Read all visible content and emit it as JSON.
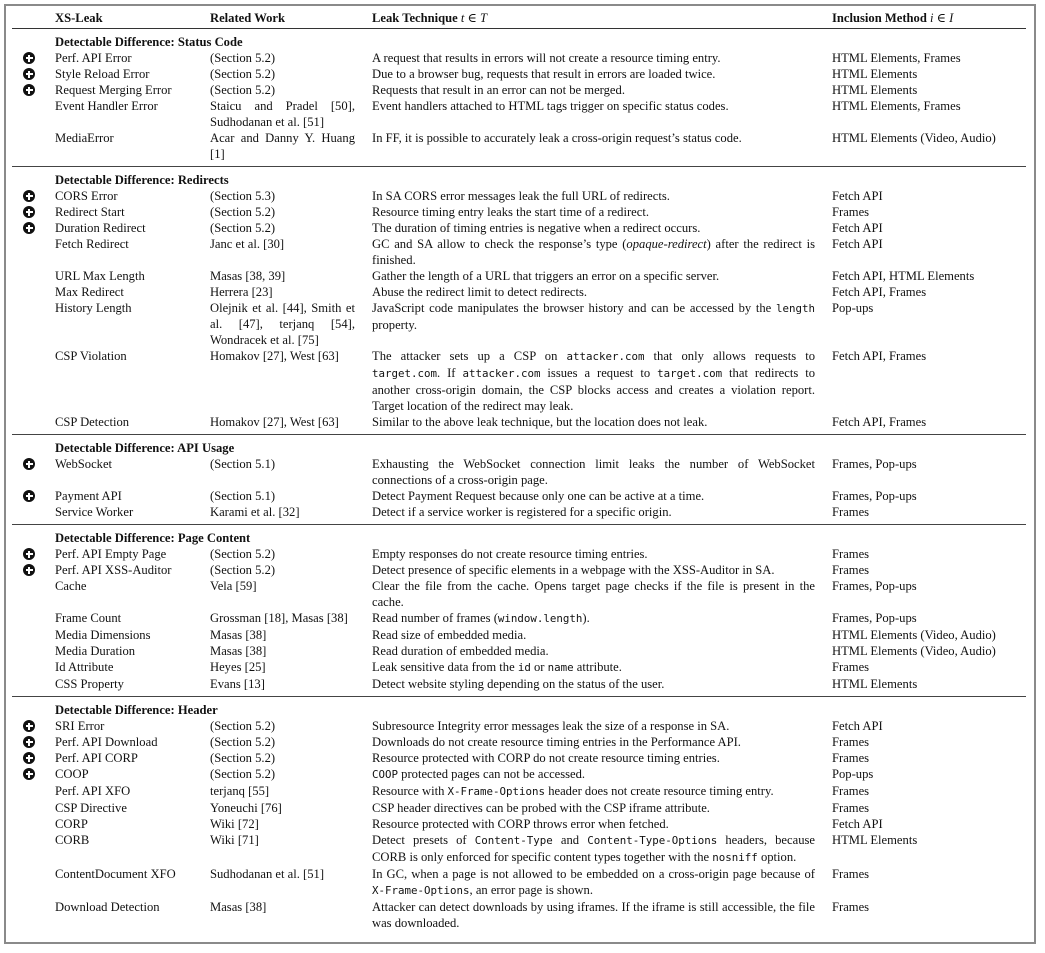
{
  "header": {
    "col_leak": "XS-Leak",
    "col_related": "Related Work",
    "col_technique": "Leak Technique",
    "col_technique_math": "t ∈ T",
    "col_inclusion": "Inclusion Method",
    "col_inclusion_math": "i ∈ I"
  },
  "sections": [
    {
      "title": "Detectable Difference: Status Code",
      "rows": [
        {
          "new": true,
          "name": "Perf. API Error",
          "related": "(Section 5.2)",
          "technique": [
            {
              "t": "A request that results in errors will not create a resource timing entry."
            }
          ],
          "inclusion": "HTML Elements, Frames"
        },
        {
          "new": true,
          "name": "Style Reload Error",
          "related": "(Section 5.2)",
          "technique": [
            {
              "t": "Due to a browser bug, requests that result in errors are loaded twice."
            }
          ],
          "inclusion": "HTML Elements"
        },
        {
          "new": true,
          "name": "Request Merging Error",
          "related": "(Section 5.2)",
          "technique": [
            {
              "t": "Requests that result in an error can not be merged."
            }
          ],
          "inclusion": "HTML Elements"
        },
        {
          "new": false,
          "name": "Event Handler Error",
          "related": "Staicu and Pradel [50], Sudhodanan et al. [51]",
          "technique": [
            {
              "t": "Event handlers attached to HTML tags trigger on specific status codes."
            }
          ],
          "inclusion": "HTML Elements, Frames"
        },
        {
          "new": false,
          "name": "MediaError",
          "related": "Acar and Danny Y. Huang [1]",
          "technique": [
            {
              "t": "In FF, it is possible to accurately leak a cross-origin request’s status code."
            }
          ],
          "inclusion": "HTML Elements (Video, Audio)"
        }
      ]
    },
    {
      "title": "Detectable Difference: Redirects",
      "rows": [
        {
          "new": true,
          "name": "CORS Error",
          "related": "(Section 5.3)",
          "technique": [
            {
              "t": "In SA CORS error messages leak the full URL of redirects."
            }
          ],
          "inclusion": "Fetch API"
        },
        {
          "new": true,
          "name": "Redirect Start",
          "related": "(Section 5.2)",
          "technique": [
            {
              "t": "Resource timing entry leaks the start time of a redirect."
            }
          ],
          "inclusion": "Frames"
        },
        {
          "new": true,
          "name": "Duration Redirect",
          "related": "(Section 5.2)",
          "technique": [
            {
              "t": "The duration of timing entries is negative when a redirect occurs."
            }
          ],
          "inclusion": "Fetch API"
        },
        {
          "new": false,
          "name": "Fetch Redirect",
          "related": "Janc et al. [30]",
          "technique": [
            {
              "t": "GC and SA allow to check the response’s type ("
            },
            {
              "em": "opaque-redirect"
            },
            {
              "t": ") after the redirect is finished."
            }
          ],
          "inclusion": "Fetch API"
        },
        {
          "new": false,
          "name": "URL Max Length",
          "related": "Masas [38, 39]",
          "technique": [
            {
              "t": "Gather the length of a URL that triggers an error on a specific server."
            }
          ],
          "inclusion": "Fetch API, HTML Elements"
        },
        {
          "new": false,
          "name": "Max Redirect",
          "related": "Herrera [23]",
          "technique": [
            {
              "t": "Abuse the redirect limit to detect redirects."
            }
          ],
          "inclusion": "Fetch API, Frames"
        },
        {
          "new": false,
          "name": "History Length",
          "related": "Olejnik et al. [44], Smith et al. [47], terjanq [54], Wondracek et al. [75]",
          "technique": [
            {
              "t": "JavaScript code manipulates the browser history and can be accessed by the "
            },
            {
              "code": "length"
            },
            {
              "t": " property."
            }
          ],
          "inclusion": "Pop-ups"
        },
        {
          "new": false,
          "name": "CSP Violation",
          "related": "Homakov [27], West [63]",
          "technique": [
            {
              "t": "The attacker sets up a CSP on "
            },
            {
              "code": "attacker.com"
            },
            {
              "t": " that only allows requests to "
            },
            {
              "code": "target.com"
            },
            {
              "t": ". If "
            },
            {
              "code": "attacker.com"
            },
            {
              "t": " issues a request to "
            },
            {
              "code": "target.com"
            },
            {
              "t": " that redirects to another cross-origin domain, the CSP blocks access and creates a violation report. Target location of the redirect may leak."
            }
          ],
          "inclusion": "Fetch API, Frames"
        },
        {
          "new": false,
          "name": "CSP Detection",
          "related": "Homakov [27], West [63]",
          "technique": [
            {
              "t": "Similar to the above leak technique, but the location does not leak."
            }
          ],
          "inclusion": "Fetch API, Frames"
        }
      ]
    },
    {
      "title": "Detectable Difference: API Usage",
      "rows": [
        {
          "new": true,
          "name": "WebSocket",
          "related": "(Section 5.1)",
          "technique": [
            {
              "t": "Exhausting the WebSocket connection limit leaks the number of WebSocket connections of a cross-origin page."
            }
          ],
          "inclusion": "Frames, Pop-ups"
        },
        {
          "new": true,
          "name": "Payment API",
          "related": "(Section 5.1)",
          "technique": [
            {
              "t": "Detect Payment Request because only one can be active at a time."
            }
          ],
          "inclusion": "Frames, Pop-ups"
        },
        {
          "new": false,
          "name": "Service Worker",
          "related": "Karami et al. [32]",
          "technique": [
            {
              "t": "Detect if a service worker is registered for a specific origin."
            }
          ],
          "inclusion": "Frames"
        }
      ]
    },
    {
      "title": "Detectable Difference: Page Content",
      "rows": [
        {
          "new": true,
          "name": "Perf. API Empty Page",
          "related": "(Section 5.2)",
          "technique": [
            {
              "t": "Empty responses do not create resource timing entries."
            }
          ],
          "inclusion": "Frames"
        },
        {
          "new": true,
          "name": "Perf. API XSS-Auditor",
          "related": "(Section 5.2)",
          "technique": [
            {
              "t": "Detect presence of specific elements in a webpage with the XSS-Auditor in SA."
            }
          ],
          "inclusion": "Frames"
        },
        {
          "new": false,
          "name": "Cache",
          "related": "Vela [59]",
          "technique": [
            {
              "t": "Clear the file from the cache. Opens target page checks if the file is present in the cache."
            }
          ],
          "inclusion": "Frames, Pop-ups"
        },
        {
          "new": false,
          "name": "Frame Count",
          "related": "Grossman [18], Masas [38]",
          "technique": [
            {
              "t": "Read number of frames ("
            },
            {
              "code": "window.length"
            },
            {
              "t": ")."
            }
          ],
          "inclusion": "Frames, Pop-ups"
        },
        {
          "new": false,
          "name": "Media Dimensions",
          "related": "Masas [38]",
          "technique": [
            {
              "t": "Read size of embedded media."
            }
          ],
          "inclusion": "HTML Elements (Video, Audio)"
        },
        {
          "new": false,
          "name": "Media Duration",
          "related": "Masas [38]",
          "technique": [
            {
              "t": "Read duration of embedded media."
            }
          ],
          "inclusion": "HTML Elements (Video, Audio)"
        },
        {
          "new": false,
          "name": "Id Attribute",
          "related": "Heyes [25]",
          "technique": [
            {
              "t": "Leak sensitive data from the "
            },
            {
              "code": "id"
            },
            {
              "t": " or "
            },
            {
              "code": "name"
            },
            {
              "t": " attribute."
            }
          ],
          "inclusion": "Frames"
        },
        {
          "new": false,
          "name": "CSS Property",
          "related": "Evans [13]",
          "technique": [
            {
              "t": "Detect website styling depending on the status of the user."
            }
          ],
          "inclusion": "HTML Elements"
        }
      ]
    },
    {
      "title": "Detectable Difference: Header",
      "rows": [
        {
          "new": true,
          "name": "SRI Error",
          "related": "(Section 5.2)",
          "technique": [
            {
              "t": "Subresource Integrity error messages leak the size of a response in SA."
            }
          ],
          "inclusion": "Fetch API"
        },
        {
          "new": true,
          "name": "Perf. API Download",
          "related": "(Section 5.2)",
          "technique": [
            {
              "t": "Downloads do not create resource timing entries in the Performance API."
            }
          ],
          "inclusion": "Frames"
        },
        {
          "new": true,
          "name": "Perf. API CORP",
          "related": "(Section 5.2)",
          "technique": [
            {
              "t": "Resource protected with CORP do not create resource timing entries."
            }
          ],
          "inclusion": "Frames"
        },
        {
          "new": true,
          "name": "COOP",
          "related": "(Section 5.2)",
          "technique": [
            {
              "code": "COOP"
            },
            {
              "t": " protected pages can not be accessed."
            }
          ],
          "inclusion": "Pop-ups"
        },
        {
          "new": false,
          "name": "Perf. API XFO",
          "related": "terjanq [55]",
          "technique": [
            {
              "t": "Resource with "
            },
            {
              "code": "X-Frame-Options"
            },
            {
              "t": " header does not create resource timing entry."
            }
          ],
          "inclusion": "Frames"
        },
        {
          "new": false,
          "name": "CSP Directive",
          "related": "Yoneuchi [76]",
          "technique": [
            {
              "t": "CSP header directives can be probed with the CSP iframe attribute."
            }
          ],
          "inclusion": "Frames"
        },
        {
          "new": false,
          "name": "CORP",
          "related": "Wiki [72]",
          "technique": [
            {
              "t": "Resource protected with CORP throws error when fetched."
            }
          ],
          "inclusion": "Fetch API"
        },
        {
          "new": false,
          "name": "CORB",
          "related": "Wiki [71]",
          "technique": [
            {
              "t": "Detect presets of "
            },
            {
              "code": "Content-Type"
            },
            {
              "t": " and "
            },
            {
              "code": "Content-Type-Options"
            },
            {
              "t": " headers, because CORB is only enforced for specific content types together with the "
            },
            {
              "code": "nosniff"
            },
            {
              "t": " option."
            }
          ],
          "inclusion": "HTML Elements"
        },
        {
          "new": false,
          "name": "ContentDocument XFO",
          "related": "Sudhodanan et al. [51]",
          "technique": [
            {
              "t": "In GC, when a page is not allowed to be embedded on a cross-origin page because of "
            },
            {
              "code": "X-Frame-Options"
            },
            {
              "t": ", an error page is shown."
            }
          ],
          "inclusion": "Frames"
        },
        {
          "new": false,
          "name": "Download Detection",
          "related": "Masas [38]",
          "technique": [
            {
              "t": "Attacker can detect downloads by using iframes. If the iframe is still accessible, the file was downloaded."
            }
          ],
          "inclusion": "Frames"
        }
      ]
    }
  ]
}
